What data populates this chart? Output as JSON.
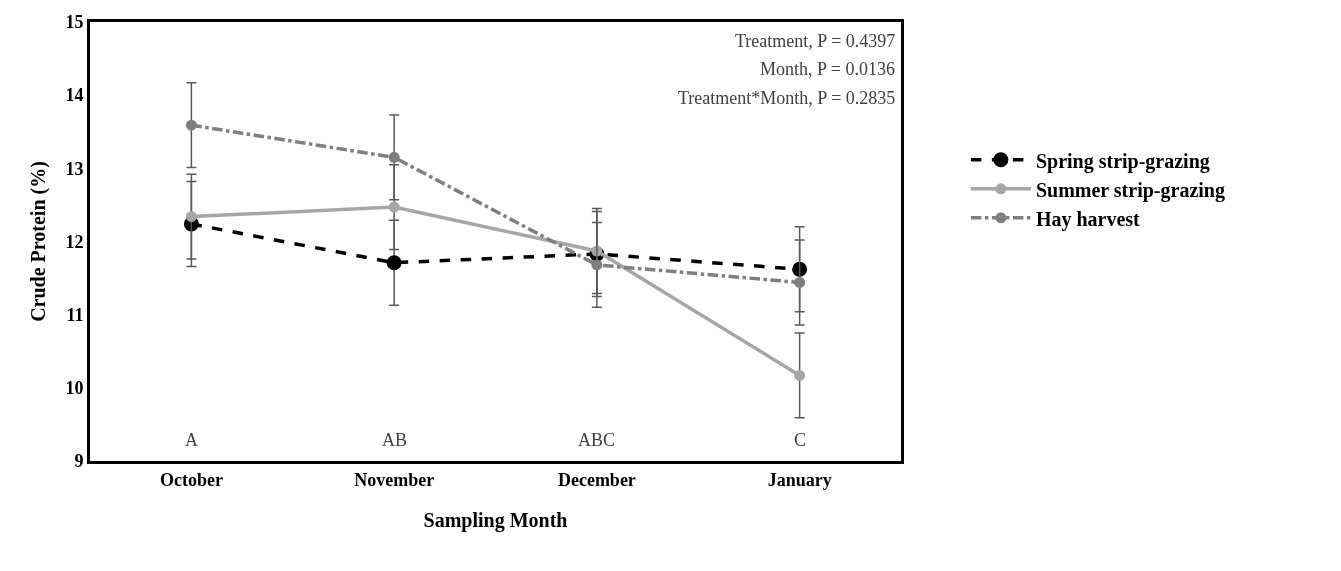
{
  "chart_data": {
    "type": "line",
    "xlabel": "Sampling Month",
    "ylabel": "Crude Protein (%)",
    "categories": [
      "October",
      "November",
      "December",
      "January"
    ],
    "series": [
      {
        "name": "Spring strip-grazing",
        "color": "#000000",
        "line_style": "dashed",
        "values": [
          12.24,
          11.71,
          11.83,
          11.62
        ],
        "errors": [
          0.58,
          0.58,
          0.58,
          0.58
        ]
      },
      {
        "name": "Summer strip-grazing",
        "color": "#a6a6a6",
        "line_style": "solid",
        "values": [
          12.34,
          12.47,
          11.87,
          10.17
        ],
        "errors": [
          0.58,
          0.58,
          0.58,
          0.58
        ]
      },
      {
        "name": "Hay harvest",
        "color": "#7f7f7f",
        "line_style": "dashdot",
        "values": [
          13.59,
          13.15,
          11.68,
          11.44
        ],
        "errors": [
          0.58,
          0.58,
          0.58,
          0.58
        ]
      }
    ],
    "ylim": [
      9,
      15
    ],
    "yticks": [
      9,
      10,
      11,
      12,
      13,
      14,
      15
    ],
    "marker": "circle",
    "legend": "right",
    "annotations": [
      "Treatment, P = 0.4397",
      "Month, P = 0.0136",
      "Treatment*Month, P = 0.2835",
      "A",
      "AB",
      "ABC",
      "C"
    ]
  }
}
